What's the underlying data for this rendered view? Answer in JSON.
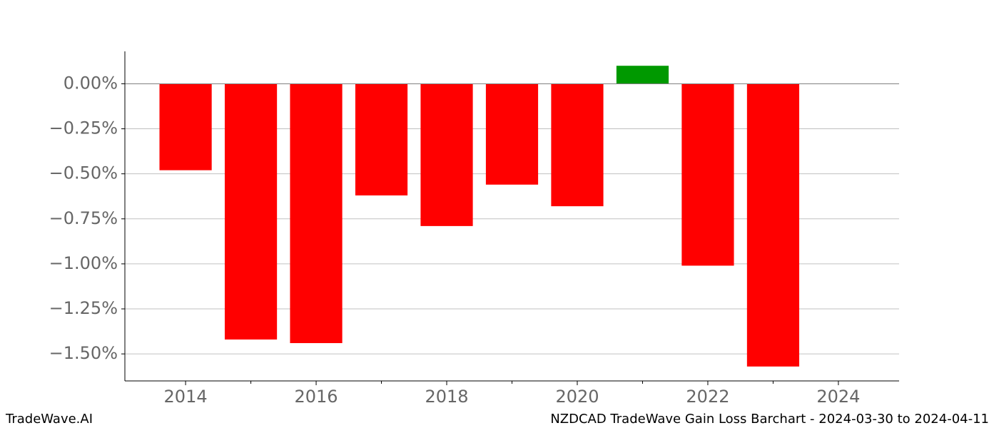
{
  "chart_data": {
    "type": "bar",
    "title": "NZDCAD TradeWave Gain Loss Barchart - 2024-03-30 to 2024-04-11",
    "watermark": "TradeWave.AI",
    "x": [
      2014,
      2015,
      2016,
      2017,
      2018,
      2019,
      2020,
      2021,
      2022,
      2023
    ],
    "values": [
      -0.48,
      -1.42,
      -1.44,
      -0.62,
      -0.79,
      -0.56,
      -0.68,
      0.1,
      -1.01,
      -1.57
    ],
    "positive_color": "#009900",
    "negative_color": "#ff0000",
    "xlim": [
      2013.07,
      2024.93
    ],
    "xticks": [
      2014,
      2016,
      2018,
      2020,
      2022,
      2024
    ],
    "xminorticks": [
      2015,
      2017,
      2019,
      2021,
      2023
    ],
    "ylim": [
      -1.65,
      0.18
    ],
    "yticks": [
      {
        "value": 0,
        "label": "0.00%"
      },
      {
        "value": -0.25,
        "label": "−0.25%"
      },
      {
        "value": -0.5,
        "label": "−0.50%"
      },
      {
        "value": -0.75,
        "label": "−0.75%"
      },
      {
        "value": -1.0,
        "label": "−1.00%"
      },
      {
        "value": -1.25,
        "label": "−1.25%"
      },
      {
        "value": -1.5,
        "label": "−1.50%"
      }
    ],
    "grid": true
  }
}
